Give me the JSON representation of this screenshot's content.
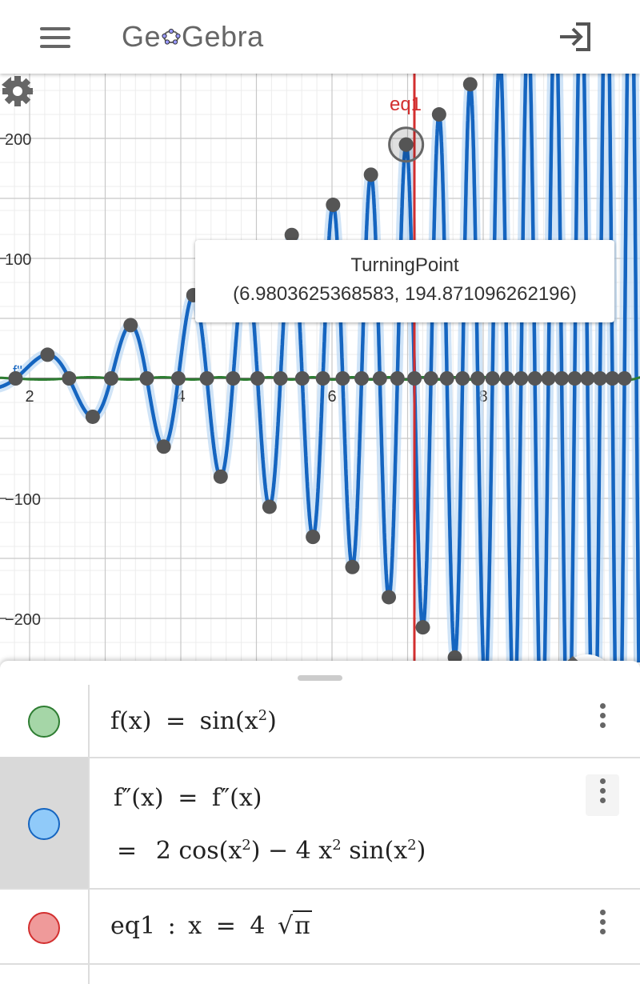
{
  "app": {
    "name": "GeoGebra"
  },
  "topbar": {
    "menu_icon": "hamburger-menu-icon",
    "signin_icon": "sign-in-icon"
  },
  "graph": {
    "y_tick_labels": [
      "200",
      "100",
      "−100",
      "−200"
    ],
    "x_tick_labels": [
      "2",
      "4",
      "6",
      "8"
    ],
    "vertical_line_label": "eq1",
    "curve_label_fpp": "f''",
    "colors": {
      "f": "#2e7d32",
      "fpp": "#1565c0",
      "fpp_halo": "#bcd8f3",
      "eq1": "#d32f2f",
      "points": "#555555",
      "grid_major": "#c8c8c8",
      "grid_minor": "#ececec"
    },
    "tooltip": {
      "title": "TurningPoint",
      "coords": "(6.9803625368583, 194.871096262196)"
    },
    "buttons": {
      "undo_icon": "undo-icon",
      "settings_icon": "gear-icon",
      "home_icon": "home-icon"
    }
  },
  "chart_data": {
    "type": "line",
    "series": [
      {
        "name": "f",
        "expression": "sin(x^2)"
      },
      {
        "name": "f''",
        "expression": "2 cos(x^2) - 4 x^2 sin(x^2)"
      }
    ],
    "vertical_line": {
      "name": "eq1",
      "x": 7.0898
    },
    "turning_point": {
      "x": 6.9803625368583,
      "y": 194.871096262196
    },
    "xlim": [
      1.6,
      10.1
    ],
    "ylim": [
      -235,
      250
    ],
    "grid": true
  },
  "algebra": {
    "rows": [
      {
        "color": "#a5d6a7",
        "border": "#2e7d32",
        "lhs": "f(x)",
        "rhs_fn": "sin",
        "rhs_arg_base": "x",
        "rhs_arg_exp": "2"
      },
      {
        "color": "#90caf9",
        "border": "#1565c0",
        "lhs": "f″(x)",
        "rhs": "f″(x)",
        "eq": "=",
        "val_2": "2",
        "val_cos": "cos",
        "val_base": "x",
        "val_exp": "2",
        "val_minus": "−",
        "val_4": "4",
        "val_x": "x",
        "val_x_exp": "2",
        "val_sin": "sin",
        "val_base2": "x",
        "val_exp2": "2"
      },
      {
        "color": "#ef9a9a",
        "border": "#d32f2f",
        "lhs": "eq1",
        "colon": ":",
        "var": "x",
        "eq": "=",
        "num": "4",
        "radicand": "π"
      }
    ]
  }
}
